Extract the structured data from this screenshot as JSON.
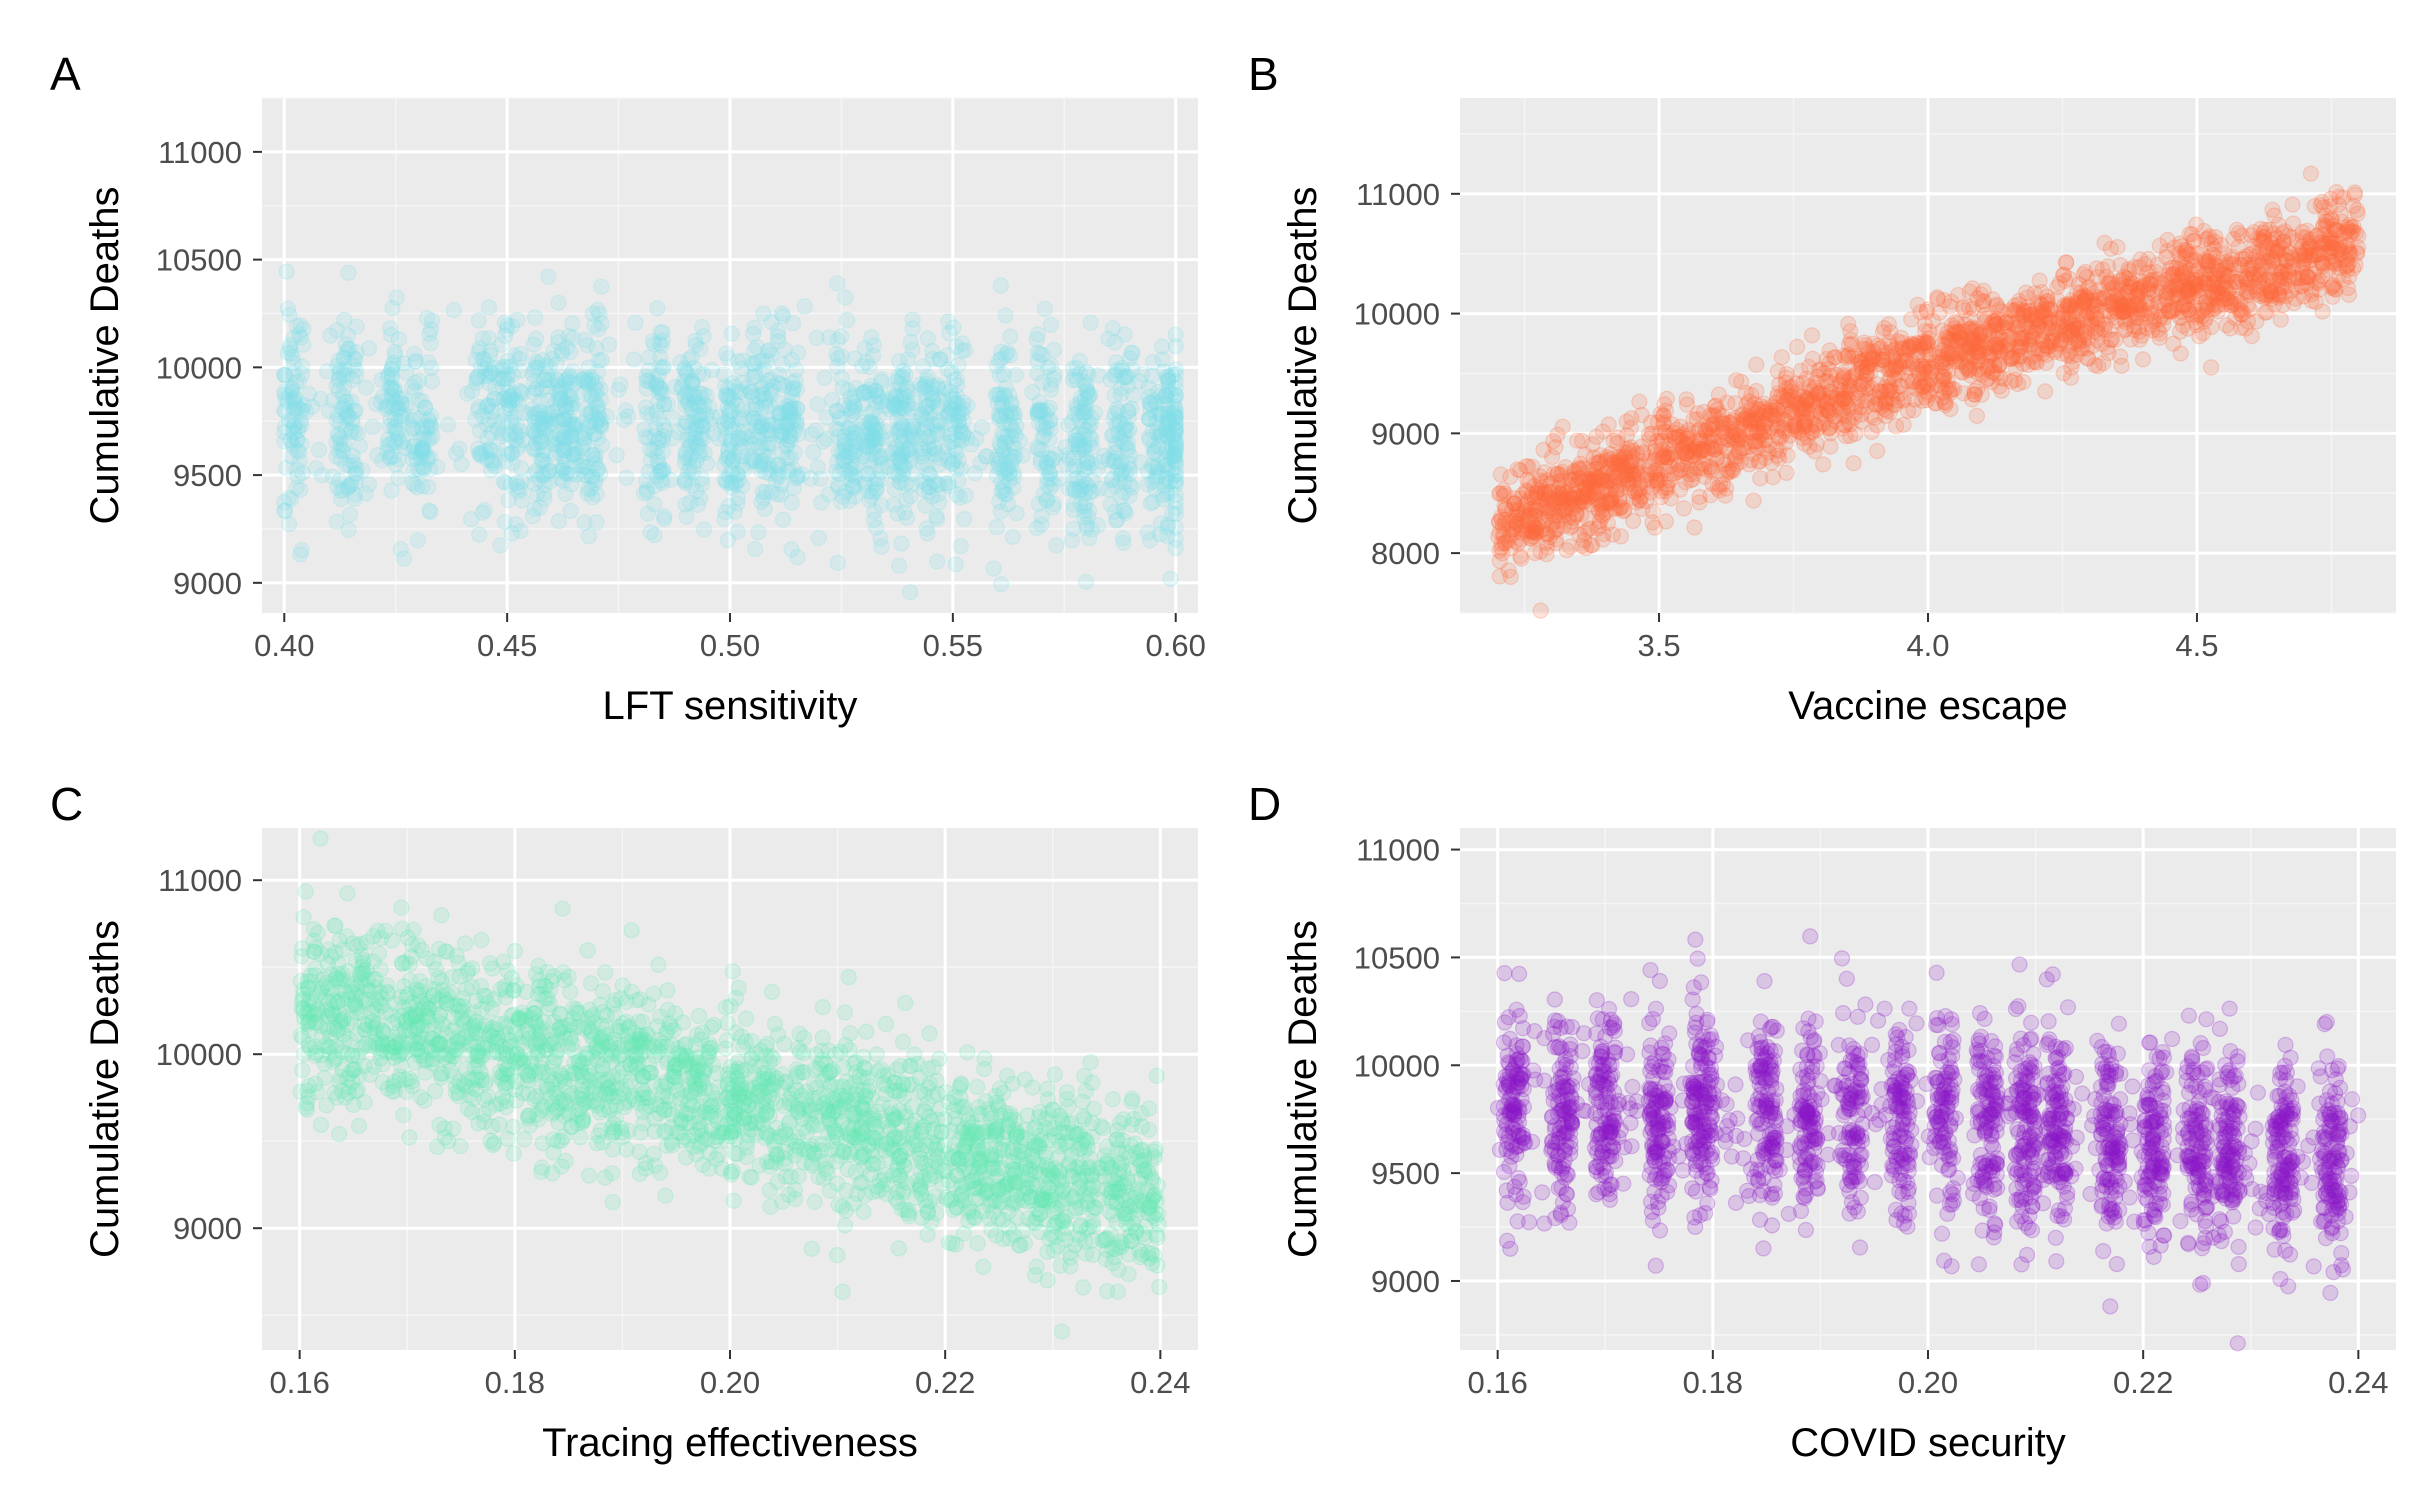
{
  "figure": {
    "point_alpha": 0.18
  },
  "chart_data": [
    {
      "panel_tag": "A",
      "type": "scatter",
      "xlabel": "LFT sensitivity",
      "ylabel": "Cumulative Deaths",
      "color": "#7fdee8",
      "xlim": [
        0.395,
        0.605
      ],
      "ylim": [
        8860,
        11250
      ],
      "x_ticks": [
        0.4,
        0.45,
        0.5,
        0.55,
        0.6
      ],
      "x_tick_labels": [
        "0.40",
        "0.45",
        "0.50",
        "0.55",
        "0.60"
      ],
      "y_ticks": [
        9000,
        9500,
        10000,
        10500,
        11000
      ],
      "y_tick_labels": [
        "9000",
        "9500",
        "10000",
        "10500",
        "11000"
      ],
      "grid": true,
      "x_clusters": [
        0.402,
        0.414,
        0.425,
        0.431,
        0.445,
        0.451,
        0.458,
        0.463,
        0.469,
        0.483,
        0.492,
        0.501,
        0.507,
        0.513,
        0.526,
        0.532,
        0.539,
        0.545,
        0.551,
        0.562,
        0.571,
        0.579,
        0.588,
        0.596,
        0.6
      ],
      "trend": [
        {
          "x": 0.4,
          "y": 9780
        },
        {
          "x": 0.5,
          "y": 9720
        },
        {
          "x": 0.6,
          "y": 9660
        }
      ],
      "spread_sd": 230,
      "point_count": 2200
    },
    {
      "panel_tag": "B",
      "type": "scatter",
      "xlabel": "Vaccine escape",
      "ylabel": "Cumulative Deaths",
      "color": "#ff6a3d",
      "xlim": [
        3.13,
        4.87
      ],
      "ylim": [
        7500,
        11800
      ],
      "x_ticks": [
        3.5,
        4.0,
        4.5
      ],
      "x_tick_labels": [
        "3.5",
        "4.0",
        "4.5"
      ],
      "y_ticks": [
        8000,
        9000,
        10000,
        11000
      ],
      "y_tick_labels": [
        "8000",
        "9000",
        "10000",
        "11000"
      ],
      "grid": true,
      "x_clusters": [],
      "trend": [
        {
          "x": 3.2,
          "y": 8230
        },
        {
          "x": 4.0,
          "y": 9600
        },
        {
          "x": 4.8,
          "y": 10600
        }
      ],
      "spread_sd": 210,
      "point_count": 2400
    },
    {
      "panel_tag": "C",
      "type": "scatter",
      "xlabel": "Tracing effectiveness",
      "ylabel": "Cumulative Deaths",
      "color": "#69e8b5",
      "xlim": [
        0.1565,
        0.2435
      ],
      "ylim": [
        8300,
        11300
      ],
      "x_ticks": [
        0.16,
        0.18,
        0.2,
        0.22,
        0.24
      ],
      "x_tick_labels": [
        "0.16",
        "0.18",
        "0.20",
        "0.22",
        "0.24"
      ],
      "y_ticks": [
        9000,
        10000,
        11000
      ],
      "y_tick_labels": [
        "9000",
        "10000",
        "11000"
      ],
      "grid": true,
      "x_clusters": [],
      "trend": [
        {
          "x": 0.16,
          "y": 10300
        },
        {
          "x": 0.2,
          "y": 9750
        },
        {
          "x": 0.24,
          "y": 9150
        }
      ],
      "spread_sd": 260,
      "point_count": 2400
    },
    {
      "panel_tag": "D",
      "type": "scatter",
      "xlabel": "COVID security",
      "ylabel": "Cumulative Deaths",
      "color": "#8b17c6",
      "xlim": [
        0.1565,
        0.2435
      ],
      "ylim": [
        8680,
        11100
      ],
      "x_ticks": [
        0.16,
        0.18,
        0.2,
        0.22,
        0.24
      ],
      "x_tick_labels": [
        "0.16",
        "0.18",
        "0.20",
        "0.22",
        "0.24"
      ],
      "y_ticks": [
        9000,
        9500,
        10000,
        10500,
        11000
      ],
      "y_tick_labels": [
        "9000",
        "9500",
        "10000",
        "10500",
        "11000"
      ],
      "grid": true,
      "x_clusters": [
        0.1615,
        0.166,
        0.17,
        0.175,
        0.179,
        0.185,
        0.189,
        0.193,
        0.1975,
        0.2015,
        0.2055,
        0.209,
        0.212,
        0.217,
        0.221,
        0.225,
        0.228,
        0.233,
        0.2375
      ],
      "trend": [
        {
          "x": 0.16,
          "y": 9820
        },
        {
          "x": 0.2,
          "y": 9740
        },
        {
          "x": 0.24,
          "y": 9560
        }
      ],
      "spread_sd": 240,
      "point_count": 2400
    }
  ]
}
